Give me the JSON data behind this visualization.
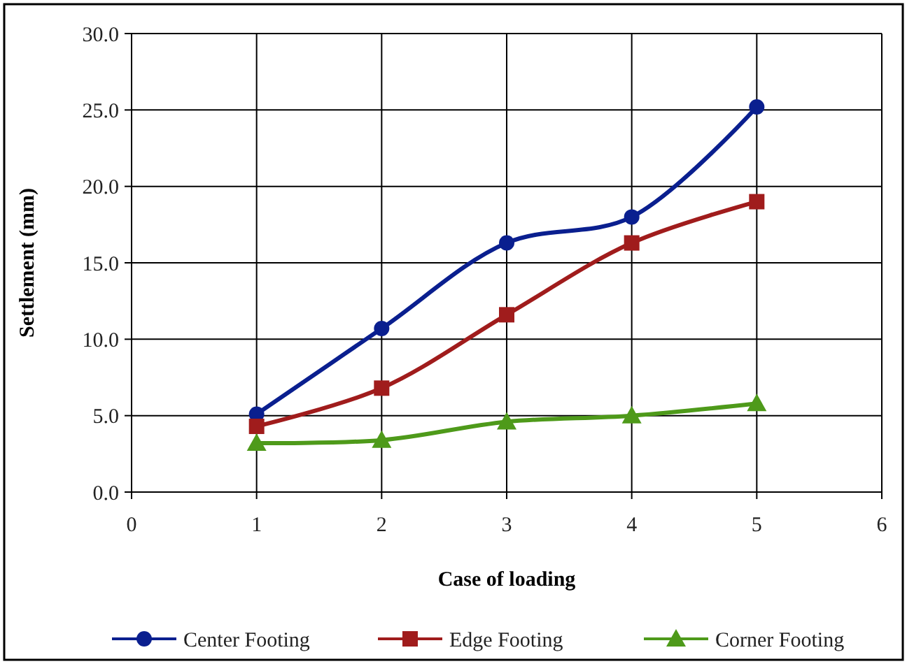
{
  "chart_data": {
    "type": "line",
    "xlabel": "Case of loading",
    "ylabel": "Settlement (mm)",
    "x": [
      1,
      2,
      3,
      4,
      5
    ],
    "series": [
      {
        "name": "Center Footing",
        "color": "#0a1f8f",
        "marker": "circle",
        "values": [
          5.1,
          10.7,
          16.3,
          18.0,
          25.2
        ]
      },
      {
        "name": "Edge Footing",
        "color": "#a01c1c",
        "marker": "square",
        "values": [
          4.3,
          6.8,
          11.6,
          16.3,
          19.0
        ]
      },
      {
        "name": "Corner Footing",
        "color": "#4e9a1a",
        "marker": "triangle",
        "values": [
          3.2,
          3.4,
          4.6,
          5.0,
          5.8
        ]
      }
    ],
    "xlim": [
      0,
      6
    ],
    "xticks": [
      0,
      1,
      2,
      3,
      4,
      5,
      6
    ],
    "ylim": [
      0,
      30
    ],
    "yticks": [
      {
        "value": 0,
        "label": "0.0"
      },
      {
        "value": 5,
        "label": "5.0"
      },
      {
        "value": 10,
        "label": "10.0"
      },
      {
        "value": 15,
        "label": "15.0"
      },
      {
        "value": 20,
        "label": "20.0"
      },
      {
        "value": 25,
        "label": "25.0"
      },
      {
        "value": 30,
        "label": "30.0"
      }
    ],
    "grid": true,
    "legend": "bottom",
    "line_style": "solid"
  }
}
